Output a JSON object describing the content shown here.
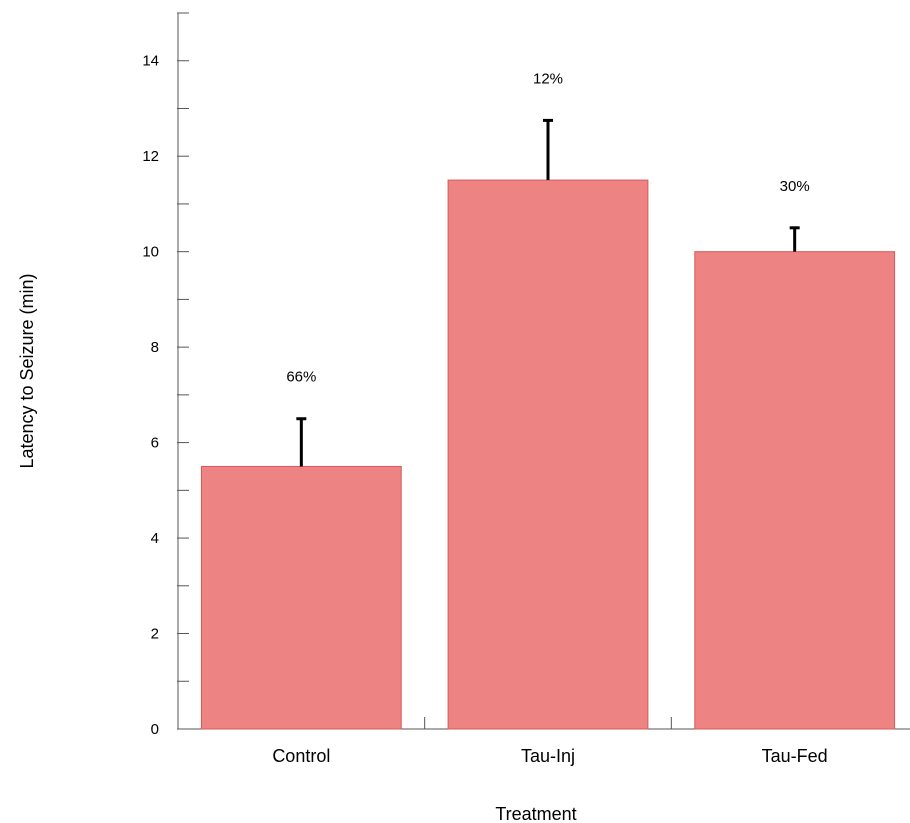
{
  "chart_data": {
    "type": "bar",
    "categories": [
      "Control",
      "Tau-Inj",
      "Tau-Fed"
    ],
    "values": [
      5.5,
      11.5,
      10.0
    ],
    "error_upper": [
      1.0,
      1.25,
      0.5
    ],
    "bar_labels": [
      "66%",
      "12%",
      "30%"
    ],
    "title": "",
    "xlabel": "Treatment",
    "ylabel": "Latency to Seizure (min)",
    "ylim": [
      0,
      15
    ],
    "yticks": [
      0,
      2,
      4,
      6,
      8,
      10,
      12,
      14
    ],
    "grid": false,
    "legend": "none",
    "bar_color": "#ee8383",
    "bar_edge_color": "#d85a5a",
    "error_color": "#000000"
  }
}
